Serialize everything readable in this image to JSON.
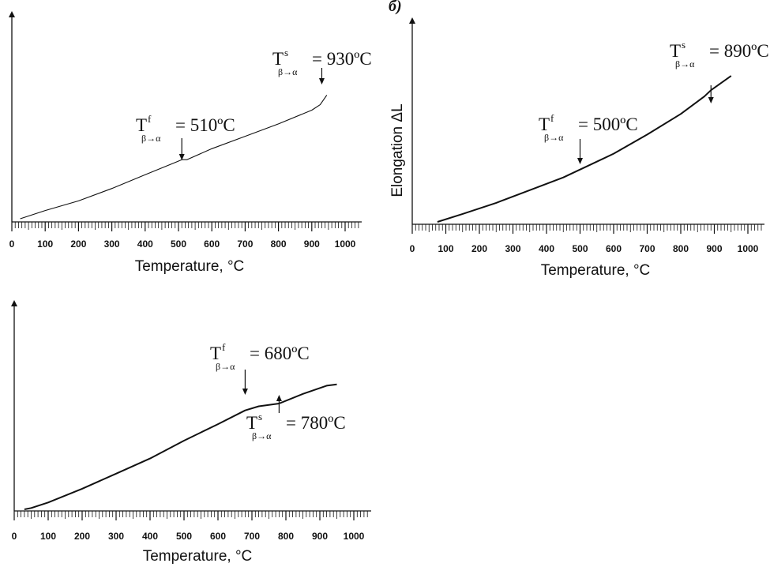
{
  "chart_data": [
    {
      "type": "line",
      "panel_label": "",
      "xlabel": "Temperature, °C",
      "ylabel": "",
      "xlim": [
        0,
        1050
      ],
      "xticks": [
        0,
        100,
        200,
        300,
        400,
        500,
        600,
        700,
        800,
        900,
        1000
      ],
      "grid": false,
      "series": [
        {
          "x": [
            25,
            100,
            200,
            300,
            400,
            490,
            510,
            525,
            600,
            700,
            800,
            900,
            925,
            945
          ],
          "y": [
            0.0,
            0.06,
            0.13,
            0.22,
            0.32,
            0.41,
            0.43,
            0.43,
            0.51,
            0.6,
            0.69,
            0.79,
            0.83,
            0.9
          ]
        }
      ],
      "annotations": [
        {
          "name": "finish",
          "symbol": "T",
          "sup": "f",
          "sub": "β→α",
          "text": "= 510ºC",
          "x": 510
        },
        {
          "name": "start",
          "symbol": "T",
          "sup": "s",
          "sub": "β→α",
          "text": "= 930ºC",
          "x": 930
        }
      ]
    },
    {
      "type": "line",
      "panel_label": "б)",
      "xlabel": "Temperature, °C",
      "ylabel": "Elongation ΔL",
      "xlim": [
        0,
        1050
      ],
      "xticks": [
        0,
        100,
        200,
        300,
        400,
        500,
        600,
        700,
        800,
        900,
        1000
      ],
      "grid": false,
      "series": [
        {
          "x": [
            75,
            150,
            250,
            350,
            450,
            500,
            510,
            600,
            700,
            800,
            870,
            890,
            950
          ],
          "y": [
            0.0,
            0.05,
            0.12,
            0.2,
            0.28,
            0.33,
            0.34,
            0.43,
            0.55,
            0.68,
            0.79,
            0.83,
            0.92
          ]
        }
      ],
      "annotations": [
        {
          "name": "finish",
          "symbol": "T",
          "sup": "f",
          "sub": "β→α",
          "text": "= 500ºC",
          "x": 500
        },
        {
          "name": "start",
          "symbol": "T",
          "sup": "s",
          "sub": "β→α",
          "text": "= 890ºC",
          "x": 890
        }
      ]
    },
    {
      "type": "line",
      "panel_label": "",
      "xlabel": "Temperature, °C",
      "ylabel": "",
      "xlim": [
        0,
        1050
      ],
      "xticks": [
        0,
        100,
        200,
        300,
        400,
        500,
        600,
        700,
        800,
        900,
        1000
      ],
      "grid": false,
      "series": [
        {
          "x": [
            30,
            50,
            100,
            200,
            300,
            400,
            500,
            600,
            680,
            720,
            780,
            850,
            920,
            950
          ],
          "y": [
            0.0,
            0.01,
            0.05,
            0.15,
            0.26,
            0.37,
            0.5,
            0.62,
            0.72,
            0.75,
            0.77,
            0.84,
            0.9,
            0.91
          ]
        }
      ],
      "annotations": [
        {
          "name": "finish",
          "symbol": "T",
          "sup": "f",
          "sub": "β→α",
          "text": "= 680ºC",
          "x": 680
        },
        {
          "name": "start",
          "symbol": "T",
          "sup": "s",
          "sub": "β→α",
          "text": "= 780ºC",
          "x": 780
        }
      ]
    }
  ]
}
